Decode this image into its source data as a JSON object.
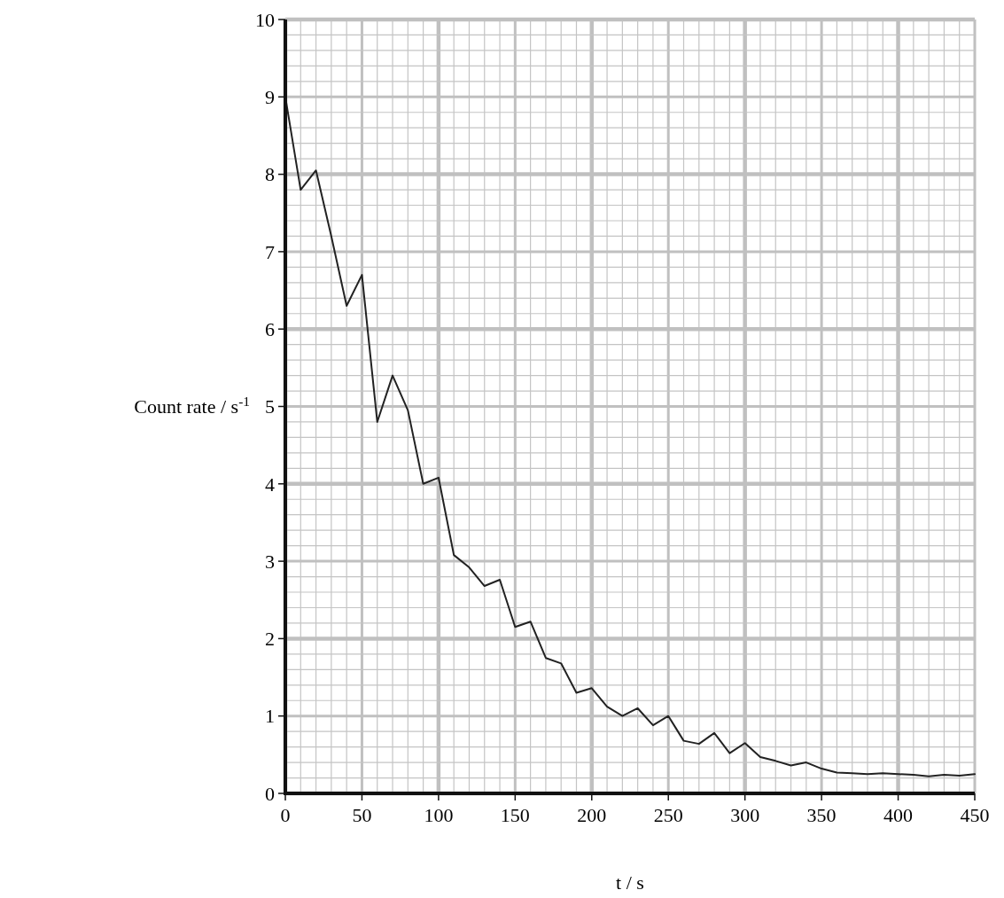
{
  "chart_data": {
    "type": "line",
    "xlabel": "t / s",
    "ylabel": "Count rate / s$^{-1}$",
    "x": [
      0,
      10,
      20,
      30,
      40,
      50,
      60,
      70,
      80,
      90,
      100,
      110,
      120,
      130,
      140,
      150,
      160,
      170,
      180,
      190,
      200,
      210,
      220,
      230,
      240,
      250,
      260,
      270,
      280,
      290,
      300,
      310,
      320,
      330,
      340,
      350,
      360,
      370,
      380,
      390,
      400,
      410,
      420,
      430,
      440,
      450
    ],
    "series": [
      {
        "color": "#222222",
        "values": [
          9.0,
          7.8,
          8.05,
          7.2,
          6.3,
          6.7,
          4.8,
          5.4,
          4.95,
          4.0,
          4.08,
          3.08,
          2.92,
          2.68,
          2.76,
          2.15,
          2.22,
          1.75,
          1.68,
          1.3,
          1.36,
          1.12,
          1.0,
          1.1,
          0.88,
          1.0,
          0.68,
          0.64,
          0.78,
          0.52,
          0.65,
          0.47,
          0.42,
          0.36,
          0.4,
          0.32,
          0.27,
          0.26,
          0.25,
          0.26,
          0.25,
          0.24,
          0.22,
          0.24,
          0.23,
          0.25
        ]
      }
    ],
    "xlim": [
      0,
      450
    ],
    "xticks": [
      0,
      50,
      100,
      150,
      200,
      250,
      300,
      350,
      400,
      450
    ],
    "ylim": [
      0,
      10
    ],
    "yticks": [
      0,
      1,
      2,
      3,
      4,
      5,
      6,
      7,
      8,
      9,
      10
    ],
    "grid": true,
    "marker": "none",
    "line_style": "solid"
  }
}
